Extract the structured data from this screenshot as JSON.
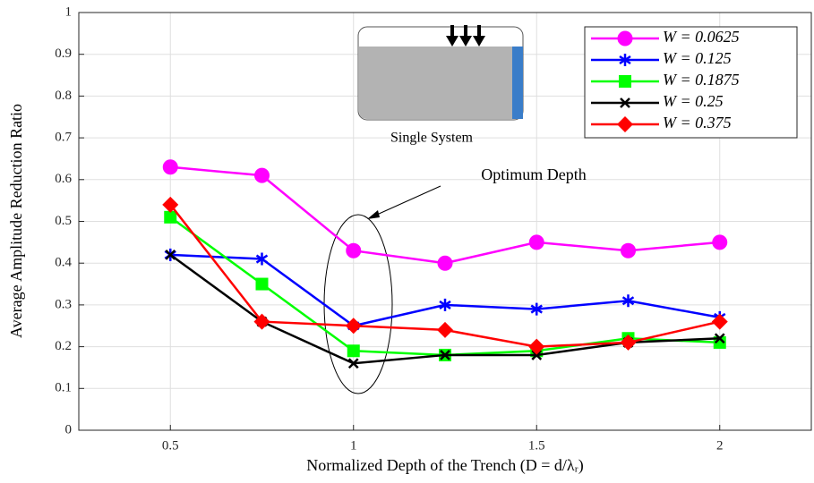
{
  "chart_data": {
    "type": "line",
    "xlabel": "Normalized Depth of the Trench (D = d/λᵣ)",
    "ylabel": "Average Amplitude Reduction Ratio",
    "annotation": "Optimum Depth",
    "inset_caption": "Single System",
    "x": [
      0.5,
      0.75,
      1,
      1.25,
      1.5,
      1.75,
      2
    ],
    "series": [
      {
        "name": "W = 0.0625",
        "color": "#ff00ff",
        "marker": "circle",
        "values": [
          0.63,
          0.61,
          0.43,
          0.4,
          0.45,
          0.43,
          0.45
        ]
      },
      {
        "name": "W = 0.125",
        "color": "#0000ff",
        "marker": "asterisk",
        "values": [
          0.42,
          0.41,
          0.25,
          0.3,
          0.29,
          0.31,
          0.27
        ]
      },
      {
        "name": "W = 0.1875",
        "color": "#00ff00",
        "marker": "square",
        "values": [
          0.51,
          0.35,
          0.19,
          0.18,
          0.19,
          0.22,
          0.21
        ]
      },
      {
        "name": "W = 0.25",
        "color": "#000000",
        "marker": "x",
        "values": [
          0.42,
          0.26,
          0.16,
          0.18,
          0.18,
          0.21,
          0.22
        ]
      },
      {
        "name": "W = 0.375",
        "color": "#ff0000",
        "marker": "diamond",
        "values": [
          0.54,
          0.26,
          0.25,
          0.24,
          0.2,
          0.21,
          0.26
        ]
      }
    ],
    "xlim": [
      0.25,
      2.25
    ],
    "xticks": [
      0.5,
      1,
      1.5,
      2
    ],
    "ylim": [
      0,
      1
    ],
    "yticks": [
      0,
      0.1,
      0.2,
      0.3,
      0.4,
      0.5,
      0.6,
      0.7,
      0.8,
      0.9,
      1
    ],
    "grid": true,
    "legend": "upper right"
  }
}
